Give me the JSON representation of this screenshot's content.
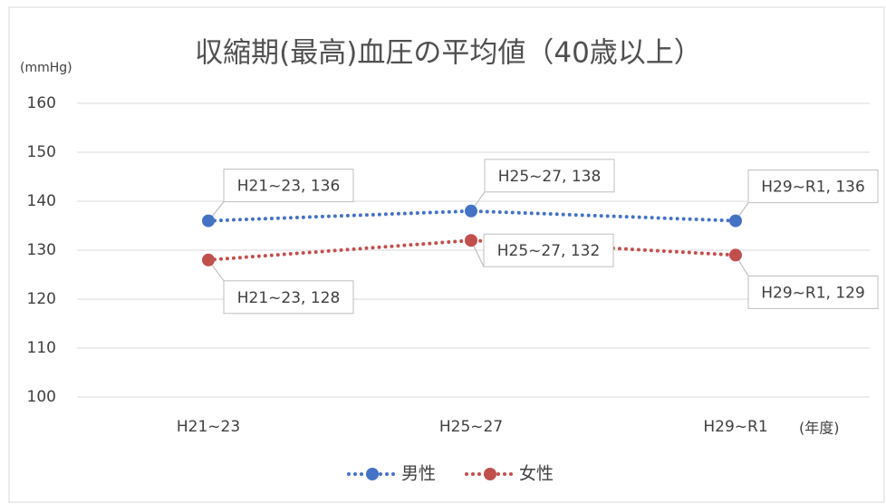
{
  "chart_data": {
    "type": "line",
    "title": "収縮期(最高)血圧の平均値（40歳以上）",
    "y_label": "(mmHg)",
    "x_label": "(年度)",
    "categories": [
      "H21~23",
      "H25~27",
      "H29~R1"
    ],
    "series": [
      {
        "name": "男性",
        "color": "#4472c4",
        "values": [
          136,
          138,
          136
        ],
        "value_labels": [
          "H21~23, 136",
          "H25~27, 138",
          "H29~R1, 136"
        ]
      },
      {
        "name": "女性",
        "color": "#c0504d",
        "values": [
          128,
          132,
          129
        ],
        "value_labels": [
          "H21~23, 128",
          "H25~27, 132",
          "H29~R1, 129"
        ]
      }
    ],
    "ylim": [
      100,
      160
    ],
    "yticks": [
      100,
      110,
      120,
      130,
      140,
      150,
      160
    ],
    "grid": true,
    "legend": "bottom"
  }
}
